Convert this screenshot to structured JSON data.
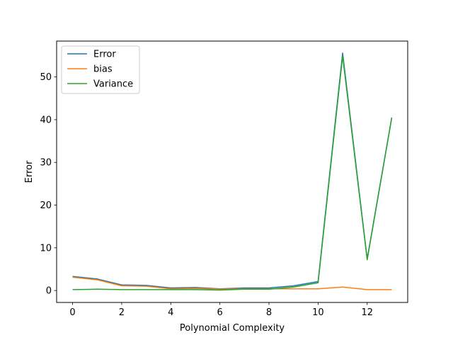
{
  "chart_data": {
    "type": "line",
    "title": "",
    "xlabel": "Polynomial Complexity",
    "ylabel": "Error",
    "xlim": [
      -0.65,
      13.65
    ],
    "ylim": [
      -2.8,
      58.4
    ],
    "xticks": [
      0,
      2,
      4,
      6,
      8,
      10,
      12
    ],
    "yticks": [
      0,
      10,
      20,
      30,
      40,
      50
    ],
    "grid": false,
    "legend_position": "top-left",
    "x": [
      0,
      1,
      2,
      3,
      4,
      5,
      6,
      7,
      8,
      9,
      10,
      11,
      12,
      13
    ],
    "series": [
      {
        "name": "Error",
        "color": "#1f77b4",
        "values": [
          3.3,
          2.7,
          1.3,
          1.2,
          0.6,
          0.7,
          0.4,
          0.6,
          0.6,
          1.1,
          2.1,
          55.6,
          7.4,
          40.5
        ]
      },
      {
        "name": "bias",
        "color": "#ff7f0e",
        "values": [
          3.1,
          2.5,
          1.1,
          1.0,
          0.4,
          0.5,
          0.3,
          0.4,
          0.4,
          0.4,
          0.4,
          0.8,
          0.2,
          0.2
        ]
      },
      {
        "name": "Variance",
        "color": "#2ca02c",
        "values": [
          0.2,
          0.3,
          0.2,
          0.2,
          0.2,
          0.2,
          0.1,
          0.3,
          0.3,
          0.8,
          1.8,
          54.9,
          7.2,
          40.4
        ]
      }
    ]
  }
}
